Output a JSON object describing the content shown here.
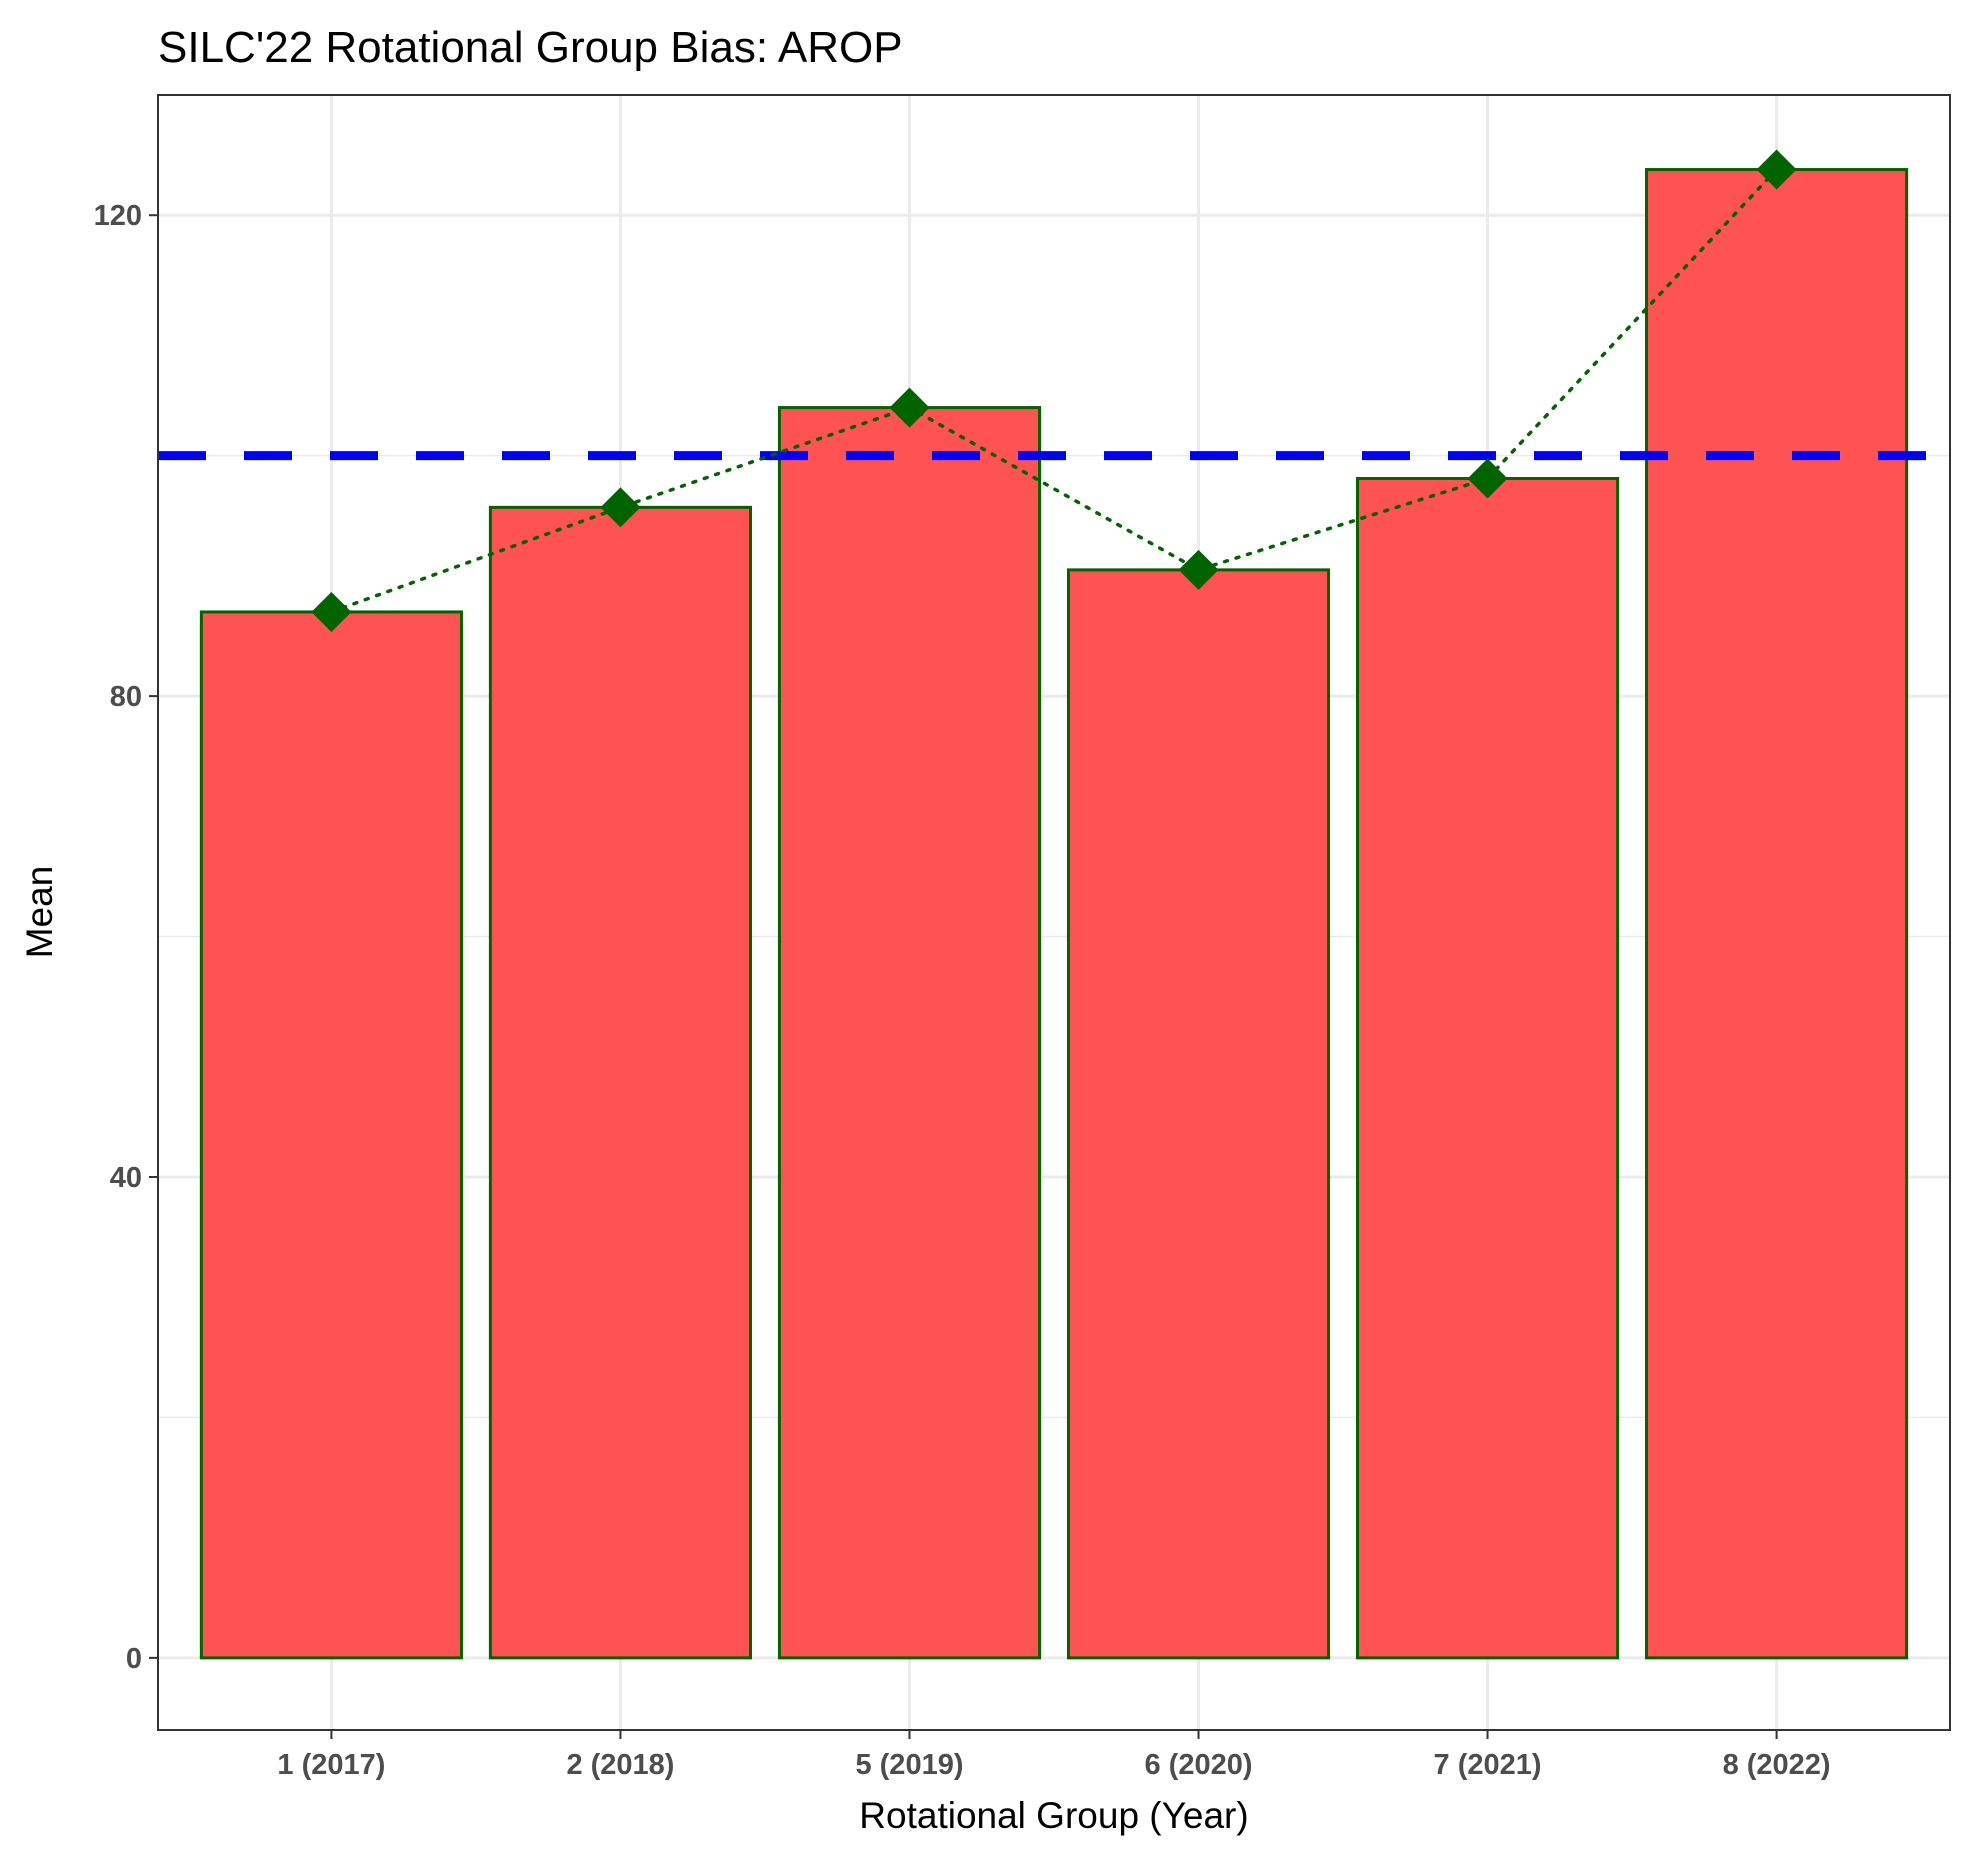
{
  "chart_data": {
    "type": "bar",
    "title": "SILC'22 Rotational Group Bias: AROP",
    "xlabel": "Rotational Group (Year)",
    "ylabel": "Mean",
    "categories": [
      "1 (2017)",
      "2 (2018)",
      "5 (2019)",
      "6 (2020)",
      "7 (2021)",
      "8 (2022)"
    ],
    "values": [
      87.0,
      95.7,
      104.0,
      90.5,
      98.1,
      123.8
    ],
    "reference_line": {
      "value": 100,
      "color": "#0000ff",
      "style": "dashed"
    },
    "overlay": {
      "type": "line",
      "marker": "diamond",
      "line_style": "dotted",
      "color": "#006400"
    },
    "ylim": [
      -6,
      130
    ],
    "yticks": [
      0,
      40,
      80,
      120
    ],
    "grid": true,
    "colors": {
      "bar_fill": "#ff5252",
      "bar_edge": "#006400",
      "grid": "#ebebeb",
      "panel_border": "#333333"
    }
  }
}
